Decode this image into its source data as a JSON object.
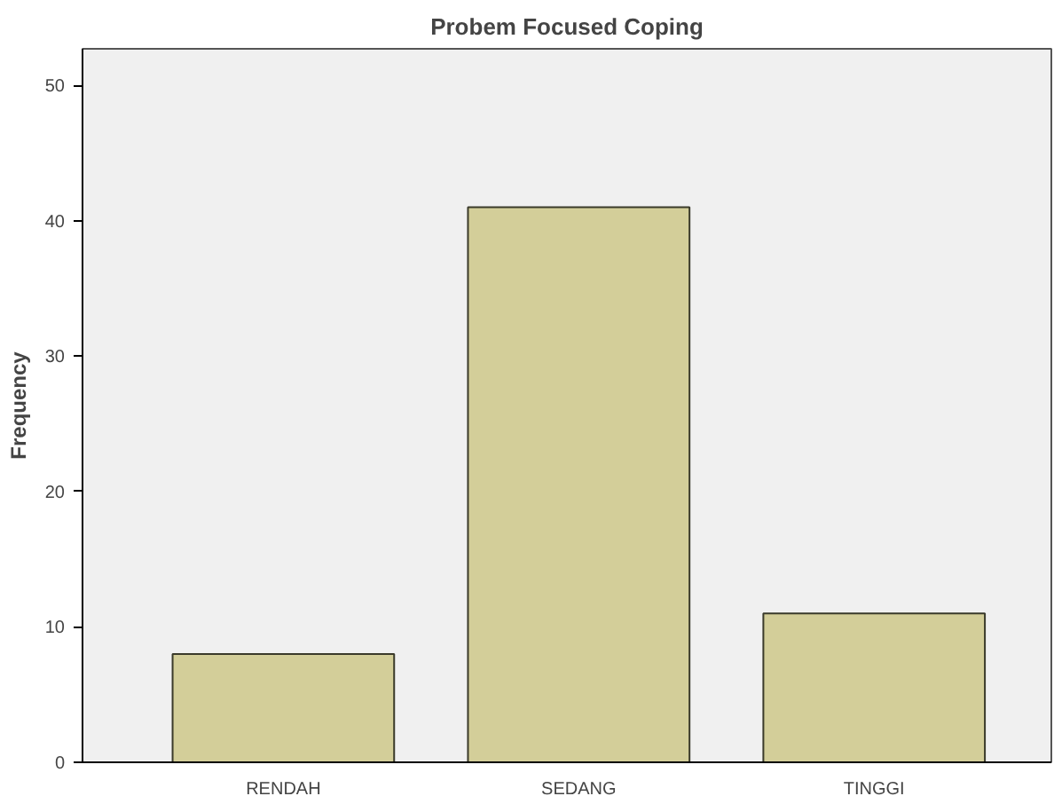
{
  "chart_data": {
    "type": "bar",
    "title": "Probem Focused Coping",
    "ylabel": "Frequency",
    "categories": [
      "RENDAH",
      "SEDANG",
      "TINGGI"
    ],
    "values": [
      8,
      41,
      11
    ],
    "color": "#d3ce99",
    "ylim": [
      0,
      52.7
    ],
    "yticks": [
      0,
      10,
      20,
      30,
      40,
      50
    ],
    "grid": false
  }
}
